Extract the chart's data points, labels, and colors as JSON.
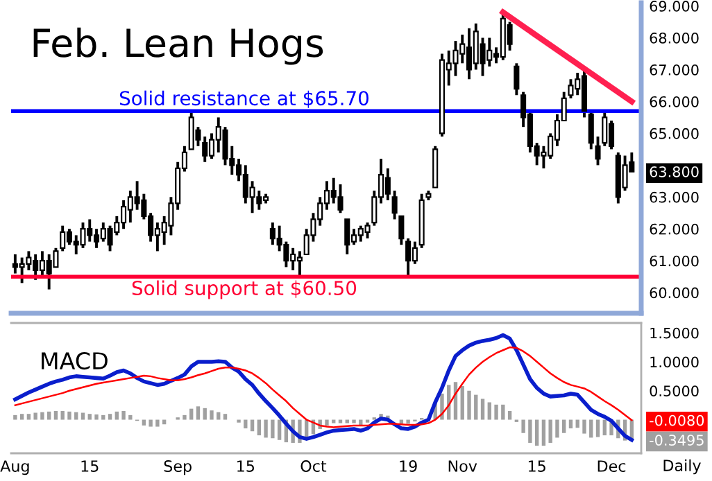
{
  "chart_data": [
    {
      "type": "candlestick",
      "title": "Feb. Lean Hogs",
      "color": "#000000",
      "tick_labels": "y",
      "grid": false,
      "legend": false,
      "categories": [
        null,
        null,
        null,
        null,
        null,
        null,
        null,
        null,
        null,
        null,
        null,
        null,
        null,
        null,
        null,
        null,
        null,
        null,
        null,
        null,
        null,
        null,
        null,
        null,
        null,
        null,
        null,
        null,
        null,
        null,
        null,
        null,
        null,
        null,
        null,
        null,
        null,
        null,
        null,
        null,
        null,
        null,
        null,
        null,
        null,
        null,
        null,
        null,
        null,
        null,
        null,
        null,
        null,
        null,
        null,
        null,
        null,
        null,
        null,
        null,
        null,
        null,
        null,
        null,
        null,
        null,
        null,
        null,
        null,
        null,
        null,
        null,
        null,
        null,
        null,
        null,
        null,
        null,
        null,
        null,
        null,
        null,
        null,
        null,
        null,
        null,
        null,
        null,
        null,
        null,
        null,
        null
      ],
      "ohlc": [
        [
          60.9,
          61.2,
          60.6,
          60.8
        ],
        [
          60.8,
          61.1,
          60.3,
          60.9
        ],
        [
          60.9,
          61.3,
          60.7,
          61.1
        ],
        [
          61.0,
          61.2,
          60.4,
          60.7
        ],
        [
          60.7,
          61.3,
          60.5,
          61.0
        ],
        [
          61.0,
          61.2,
          60.1,
          60.6
        ],
        [
          60.8,
          61.4,
          60.8,
          61.3
        ],
        [
          61.4,
          62.1,
          61.3,
          61.9
        ],
        [
          61.9,
          62.0,
          61.5,
          61.6
        ],
        [
          61.6,
          61.8,
          61.2,
          61.5
        ],
        [
          61.5,
          62.2,
          61.4,
          62.0
        ],
        [
          62.0,
          62.3,
          61.6,
          61.8
        ],
        [
          61.8,
          62.0,
          61.4,
          61.6
        ],
        [
          61.7,
          62.2,
          61.6,
          62.0
        ],
        [
          62.0,
          62.1,
          61.3,
          61.5
        ],
        [
          61.9,
          62.4,
          61.8,
          62.2
        ],
        [
          62.2,
          62.9,
          62.0,
          62.7
        ],
        [
          62.6,
          63.2,
          62.2,
          63.0
        ],
        [
          63.0,
          63.5,
          62.6,
          62.8
        ],
        [
          62.9,
          63.1,
          62.3,
          62.4
        ],
        [
          62.4,
          62.5,
          61.6,
          61.8
        ],
        [
          61.8,
          62.2,
          61.3,
          62.0
        ],
        [
          61.9,
          62.4,
          61.5,
          62.2
        ],
        [
          62.1,
          63.0,
          61.8,
          62.8
        ],
        [
          62.8,
          64.1,
          62.6,
          63.9
        ],
        [
          63.9,
          64.6,
          63.8,
          64.4
        ],
        [
          64.5,
          65.7,
          64.5,
          65.5
        ],
        [
          65.1,
          65.2,
          64.6,
          64.8
        ],
        [
          64.7,
          64.9,
          64.1,
          64.3
        ],
        [
          64.3,
          65.0,
          64.2,
          64.8
        ],
        [
          64.8,
          65.5,
          64.4,
          65.2
        ],
        [
          65.1,
          65.2,
          64.0,
          64.2
        ],
        [
          64.2,
          64.6,
          63.7,
          64.0
        ],
        [
          64.0,
          64.2,
          63.5,
          63.7
        ],
        [
          63.7,
          64.0,
          62.8,
          63.0
        ],
        [
          63.0,
          63.5,
          62.5,
          63.3
        ],
        [
          63.0,
          63.2,
          62.6,
          62.8
        ],
        [
          62.9,
          63.1,
          62.8,
          63.0
        ],
        [
          62.0,
          62.2,
          61.5,
          61.7
        ],
        [
          61.7,
          62.1,
          61.3,
          61.5
        ],
        [
          61.5,
          61.6,
          60.8,
          61.0
        ],
        [
          61.0,
          61.4,
          60.7,
          61.2
        ],
        [
          61.0,
          61.3,
          60.5,
          61.1
        ],
        [
          61.2,
          62.0,
          61.2,
          61.8
        ],
        [
          61.8,
          62.5,
          61.6,
          62.3
        ],
        [
          62.3,
          63.0,
          62.1,
          62.8
        ],
        [
          62.8,
          63.5,
          62.6,
          63.2
        ],
        [
          63.2,
          63.6,
          62.8,
          63.0
        ],
        [
          63.0,
          63.4,
          62.5,
          62.6
        ],
        [
          62.3,
          62.3,
          61.2,
          61.5
        ],
        [
          61.6,
          62.0,
          61.5,
          61.8
        ],
        [
          61.8,
          62.1,
          61.6,
          62.0
        ],
        [
          61.9,
          62.2,
          61.7,
          62.1
        ],
        [
          62.2,
          63.2,
          62.1,
          63.0
        ],
        [
          63.0,
          64.2,
          62.8,
          63.7
        ],
        [
          63.6,
          63.9,
          62.9,
          63.1
        ],
        [
          63.0,
          63.2,
          62.3,
          62.5
        ],
        [
          62.4,
          62.4,
          61.5,
          61.7
        ],
        [
          61.6,
          61.7,
          60.5,
          61.0
        ],
        [
          61.0,
          61.6,
          60.9,
          61.4
        ],
        [
          61.5,
          63.1,
          61.4,
          62.9
        ],
        [
          63.0,
          63.2,
          62.9,
          63.1
        ],
        [
          63.3,
          64.6,
          63.3,
          64.5
        ],
        [
          65.0,
          67.5,
          64.9,
          67.3
        ],
        [
          67.0,
          67.6,
          66.5,
          67.2
        ],
        [
          67.2,
          67.9,
          66.8,
          67.6
        ],
        [
          67.5,
          68.1,
          67.2,
          67.8
        ],
        [
          67.7,
          68.3,
          66.7,
          67.0
        ],
        [
          67.2,
          68.45,
          67.0,
          68.2
        ],
        [
          67.8,
          68.0,
          66.8,
          67.2
        ],
        [
          67.3,
          68.0,
          67.1,
          67.6
        ],
        [
          67.5,
          67.7,
          67.2,
          67.4
        ],
        [
          67.4,
          68.8,
          67.3,
          68.6
        ],
        [
          68.4,
          68.5,
          67.6,
          67.8
        ],
        [
          67.1,
          67.2,
          66.2,
          66.4
        ],
        [
          66.2,
          66.3,
          65.2,
          65.5
        ],
        [
          65.6,
          65.7,
          64.4,
          64.6
        ],
        [
          64.6,
          64.7,
          64.0,
          64.3
        ],
        [
          64.3,
          64.6,
          63.9,
          64.4
        ],
        [
          64.3,
          65.0,
          64.2,
          64.9
        ],
        [
          64.8,
          65.6,
          64.6,
          65.4
        ],
        [
          65.4,
          66.3,
          65.4,
          66.1
        ],
        [
          66.2,
          66.7,
          66.1,
          66.5
        ],
        [
          66.4,
          66.9,
          66.2,
          66.7
        ],
        [
          66.8,
          66.95,
          65.5,
          65.7
        ],
        [
          65.6,
          65.7,
          64.5,
          64.7
        ],
        [
          64.6,
          64.9,
          64.0,
          64.2
        ],
        [
          64.7,
          65.7,
          64.6,
          65.5
        ],
        [
          65.3,
          65.4,
          64.5,
          64.6
        ],
        [
          64.3,
          64.4,
          62.8,
          63.0
        ],
        [
          63.3,
          64.3,
          63.2,
          64.0
        ],
        [
          64.1,
          64.4,
          63.8,
          63.8
        ]
      ],
      "series": [
        {
          "type": "line",
          "color": "#ff2050",
          "values": [
            null,
            null,
            null,
            null,
            null,
            null,
            null,
            null,
            null,
            null,
            null,
            null,
            null,
            null,
            null,
            null,
            null,
            null,
            null,
            null,
            null,
            null,
            null,
            null,
            null,
            null,
            null,
            null,
            null,
            null,
            null,
            null,
            null,
            null,
            null,
            null,
            null,
            null,
            null,
            null,
            null,
            null,
            null,
            null,
            null,
            null,
            null,
            null,
            null,
            null,
            null,
            null,
            null,
            null,
            null,
            null,
            null,
            null,
            null,
            null,
            null,
            null,
            null,
            null,
            null,
            null,
            null,
            null,
            null,
            null,
            null,
            null,
            68.8,
            null,
            null,
            null,
            null,
            null,
            null,
            null,
            null,
            null,
            null,
            null,
            null,
            null,
            null,
            null,
            null,
            null,
            null,
            66.0
          ]
        }
      ],
      "ylim": [
        59.35,
        69.1
      ],
      "yticks": [
        {
          "value": 60,
          "label": "60.000"
        },
        {
          "value": 61,
          "label": "61.000"
        },
        {
          "value": 62,
          "label": "62.000"
        },
        {
          "value": 63,
          "label": "63.000"
        },
        {
          "value": 63.8,
          "label": "63.800"
        },
        {
          "value": 65,
          "label": "65.000"
        },
        {
          "value": 66,
          "label": "66.000"
        },
        {
          "value": 67,
          "label": "67.000"
        },
        {
          "value": 68,
          "label": "68.000"
        },
        {
          "value": 69,
          "label": "69.000"
        }
      ],
      "ref_lines": [
        {
          "axis": "y",
          "value": 65.7,
          "label": "Solid resistance at $65.70",
          "color": "#0000ff"
        },
        {
          "axis": "y",
          "value": 60.5,
          "label": "Solid support at $60.50",
          "color": "#ff0033"
        }
      ]
    },
    {
      "type": "line",
      "title": "MACD",
      "grid": false,
      "legend": false,
      "categories": [
        "Aug",
        null,
        null,
        null,
        null,
        null,
        null,
        null,
        null,
        null,
        null,
        "15",
        null,
        null,
        null,
        null,
        null,
        null,
        null,
        null,
        null,
        null,
        null,
        null,
        "Sep",
        null,
        null,
        null,
        null,
        null,
        null,
        null,
        null,
        null,
        "15",
        null,
        null,
        null,
        null,
        null,
        null,
        null,
        null,
        null,
        "Oct",
        null,
        null,
        null,
        null,
        null,
        null,
        null,
        null,
        null,
        null,
        null,
        null,
        null,
        "19",
        null,
        null,
        null,
        null,
        null,
        null,
        null,
        "Nov",
        null,
        null,
        null,
        null,
        null,
        null,
        null,
        null,
        null,
        null,
        "15",
        null,
        null,
        null,
        null,
        null,
        null,
        null,
        null,
        null,
        null,
        "Dec",
        null,
        null,
        null
      ],
      "series": [
        {
          "type": "bar",
          "color": "#a0a0a0",
          "values": [
            0.08,
            0.1,
            0.1,
            0.12,
            0.13,
            0.14,
            0.15,
            0.15,
            0.14,
            0.13,
            0.12,
            0.1,
            0.09,
            0.08,
            0.1,
            0.14,
            0.15,
            0.08,
            -0.02,
            -0.1,
            -0.12,
            -0.12,
            -0.08,
            null,
            0.04,
            0.08,
            0.19,
            0.23,
            0.2,
            0.16,
            0.13,
            0.1,
            0.0,
            -0.05,
            -0.15,
            -0.2,
            -0.27,
            -0.31,
            -0.32,
            -0.35,
            -0.39,
            -0.4,
            -0.4,
            -0.33,
            -0.25,
            -0.16,
            -0.1,
            -0.06,
            -0.06,
            -0.06,
            -0.06,
            -0.09,
            -0.05,
            0.04,
            0.1,
            0.07,
            null,
            -0.07,
            -0.07,
            -0.03,
            0.03,
            null,
            0.3,
            0.45,
            0.6,
            0.65,
            0.58,
            0.5,
            0.43,
            0.36,
            0.3,
            0.26,
            0.26,
            0.15,
            -0.04,
            -0.23,
            -0.4,
            -0.45,
            -0.45,
            -0.4,
            -0.31,
            -0.23,
            -0.15,
            -0.14,
            -0.24,
            -0.31,
            -0.3,
            -0.27,
            -0.27,
            -0.32,
            -0.36,
            -0.3495
          ]
        },
        {
          "type": "line",
          "color": "#0a1ecc",
          "values": [
            0.35,
            0.41,
            0.47,
            0.52,
            0.57,
            0.62,
            0.66,
            0.69,
            0.73,
            0.75,
            0.74,
            0.73,
            0.72,
            0.71,
            0.76,
            0.82,
            0.85,
            0.8,
            0.72,
            0.66,
            0.63,
            0.6,
            0.62,
            0.67,
            0.72,
            0.78,
            0.92,
            1.0,
            1.0,
            1.0,
            1.01,
            1.0,
            0.9,
            0.83,
            0.7,
            0.6,
            0.45,
            0.32,
            0.2,
            0.07,
            -0.07,
            -0.2,
            -0.3,
            -0.33,
            -0.3,
            -0.26,
            -0.22,
            -0.19,
            -0.18,
            -0.17,
            -0.16,
            -0.19,
            -0.15,
            -0.05,
            0.02,
            0.0,
            -0.08,
            -0.15,
            -0.16,
            -0.12,
            -0.05,
            0.0,
            0.3,
            0.55,
            0.85,
            1.1,
            1.2,
            1.28,
            1.33,
            1.36,
            1.38,
            1.41,
            1.46,
            1.4,
            1.2,
            0.95,
            0.7,
            0.55,
            0.45,
            0.4,
            0.41,
            0.42,
            0.45,
            0.43,
            0.3,
            0.17,
            0.1,
            0.05,
            -0.02,
            -0.15,
            -0.28,
            -0.35
          ]
        },
        {
          "type": "line",
          "color": "#ff0000",
          "values": [
            0.25,
            0.28,
            0.31,
            0.34,
            0.37,
            0.4,
            0.43,
            0.46,
            0.5,
            0.53,
            0.56,
            0.59,
            0.62,
            0.64,
            0.66,
            0.68,
            0.7,
            0.72,
            0.74,
            0.76,
            0.75,
            0.72,
            0.7,
            0.68,
            0.68,
            0.7,
            0.73,
            0.77,
            0.8,
            0.84,
            0.88,
            0.9,
            0.9,
            0.88,
            0.85,
            0.8,
            0.72,
            0.63,
            0.52,
            0.42,
            0.32,
            0.2,
            0.1,
            0.0,
            -0.05,
            -0.1,
            -0.12,
            -0.13,
            -0.12,
            -0.11,
            -0.1,
            -0.1,
            -0.1,
            -0.09,
            -0.08,
            -0.07,
            -0.07,
            -0.08,
            -0.09,
            -0.09,
            -0.08,
            -0.06,
            0.0,
            0.1,
            0.25,
            0.45,
            0.62,
            0.78,
            0.9,
            1.0,
            1.08,
            1.15,
            1.2,
            1.25,
            1.24,
            1.18,
            1.1,
            1.0,
            0.9,
            0.8,
            0.72,
            0.65,
            0.6,
            0.57,
            0.54,
            0.48,
            0.4,
            0.32,
            0.25,
            0.17,
            0.08,
            -0.008
          ]
        }
      ],
      "ylim": [
        -0.58,
        1.67
      ],
      "yticks": [
        {
          "value": 1.5,
          "label": "1.5000"
        },
        {
          "value": 1.0,
          "label": "1.0000"
        },
        {
          "value": 0.5,
          "label": "0.5000"
        },
        {
          "value": -0.008,
          "label": "-0.0080"
        },
        {
          "value": -0.3495,
          "label": "-0.3495"
        }
      ],
      "annotations": [
        "Daily"
      ]
    }
  ]
}
